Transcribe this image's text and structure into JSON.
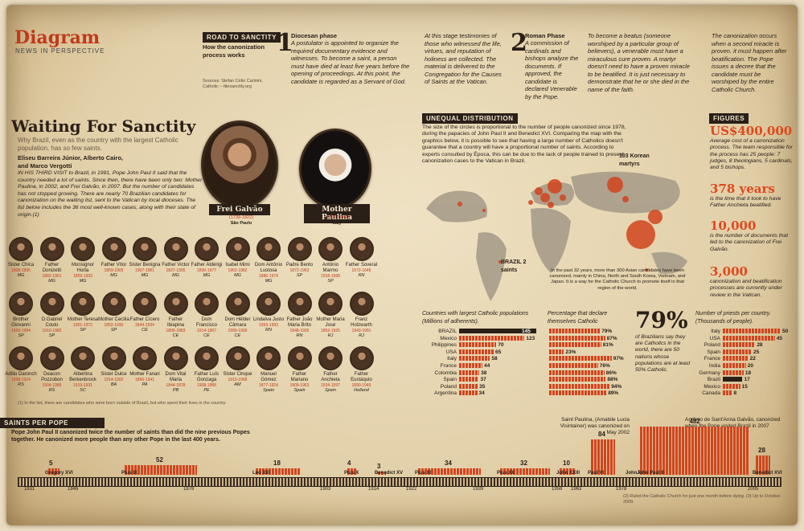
{
  "brand": {
    "title": "Diagram",
    "subtitle": "NEWS IN PERSPECTIVE"
  },
  "road": {
    "header": "ROAD TO SANCTITY",
    "subhead": "How the canonization process works",
    "sources": "Sources: Stefan Célio Carloini, Catholic – ttlesanctity.org"
  },
  "steps": [
    {
      "num": "1",
      "title": "Diocesan phase",
      "text": "A postulator is appointed to organize the required documentary evidence and witnesses. To become a saint, a person must have died at least five years before the opening of proceedings. At this point, the candidate is regarded as a Servant of God."
    },
    {
      "num": "",
      "title": "",
      "text": "At this stage testimonies of those who witnessed the life, virtues, and reputation of holiness are collected. The material is delivered to the Congregation for the Causes of Saints at the Vatican."
    },
    {
      "num": "2",
      "title": "Roman Phase",
      "text": "A commission of cardinals and bishops analyze the documents. If approved, the candidate is declared Venerable by the Pope."
    },
    {
      "num": "",
      "title": "",
      "text": "To become a beatus (someone worshiped by a particular group of believers), a venerable must have a miraculous cure proven. A martyr doesn't need to have a proven miracle to be beatified. It is just necessary to demonstrate that he or she died in the name of the faith."
    },
    {
      "num": "",
      "title": "",
      "text": "The canonization occurs when a second miracle is proven. it must happen after beatification. The Pope issues a decree that the candidate must be worshiped by the entire Catholic Church."
    }
  ],
  "waiting": {
    "title": "Waiting For Sanctity",
    "dek": "Why Brazil, even as the country with the largest Catholic population, has so few saints.",
    "authors": "Eliseu Barreira Júnior, Alberto Cairo, and Marco Vergotti",
    "body": "IN HIS THIRD VISIT to Brazil, in 1991, Pope John Paul II said that the country needed a lot of saints. Since then, there have been only two: Mother Paulina, in 2002, and Frei Galvão, in 2007. But the number of candidates has not stopped growing. There are nearly 70 Brazilian candidates for canonization on the waiting list, sent to the Vatican by local dioceses. The list below includes the 36 most well-known cases, along with their state of origin.(1)",
    "footnote": "(1) In the list, there are candidates who were born outside of Brazil, but who spent their lives in the country."
  },
  "featured": [
    {
      "name": "Frei Galvão",
      "years": "(1739-1822)",
      "place": "São Paulo"
    },
    {
      "name": "Mother Paulina",
      "years": "(1865-1942)",
      "place": "Italy"
    }
  ],
  "saints": [
    {
      "name": "Sister Chica",
      "years": "1808-1895",
      "state": "MG"
    },
    {
      "name": "Father Donizetti",
      "years": "1882-1961",
      "state": "MG"
    },
    {
      "name": "Monsignor Horta",
      "years": "1859-1933",
      "state": "MG"
    },
    {
      "name": "Father Vítor",
      "years": "1859-1905",
      "state": "MG"
    },
    {
      "name": "Sister Benigna",
      "years": "1907-1981",
      "state": "MG"
    },
    {
      "name": "Father Victor",
      "years": "1827-1905",
      "state": "MG"
    },
    {
      "name": "Father Aldérigi",
      "years": "1890-1977",
      "state": "MG"
    },
    {
      "name": "Isabel Mimi",
      "years": "1962-1982",
      "state": "MG"
    },
    {
      "name": "Dom Antônio Lustosa",
      "years": "1886-1974",
      "state": "MG"
    },
    {
      "name": "Padre Bento",
      "years": "1872-1963",
      "state": "SP"
    },
    {
      "name": "Antônio Marrno",
      "years": "1918-1998",
      "state": "SP"
    },
    {
      "name": "Father Soveral",
      "years": "1572-1645",
      "state": "RN"
    },
    {
      "name": "Brother Giovanni",
      "years": "1903-1994",
      "state": "SP"
    },
    {
      "name": "D.Gabriel Couto",
      "years": "1910-1982",
      "state": "SP"
    },
    {
      "name": "Mother Teresa",
      "years": "1901-1972",
      "state": "SP"
    },
    {
      "name": "Mother Cecília",
      "years": "1852-1930",
      "state": "SP"
    },
    {
      "name": "Father Cícero",
      "years": "1844-1934",
      "state": "CE"
    },
    {
      "name": "Father Ibiapina",
      "years": "1806-1883",
      "state": "CE"
    },
    {
      "name": "Dom Francisco",
      "years": "1914-1967",
      "state": "CE"
    },
    {
      "name": "Dom Hélder Câmara",
      "years": "1909-1999",
      "state": "CE"
    },
    {
      "name": "Lindalva Justo",
      "years": "1953-1993",
      "state": "RN"
    },
    {
      "name": "Father João Maria Brito",
      "years": "1848-1905",
      "state": "RN"
    },
    {
      "name": "Mother Maria José",
      "years": "1852-1925",
      "state": "RJ"
    },
    {
      "name": "Franz Holzwarth",
      "years": "1943-1991",
      "state": "RJ"
    },
    {
      "name": "Adílio Daronch",
      "years": "1908-1924",
      "state": "RS"
    },
    {
      "name": "Deacon Pozzobon",
      "years": "1904-1985",
      "state": "RS"
    },
    {
      "name": "Albertina Berkenbrock",
      "years": "1919-1931",
      "state": "SC"
    },
    {
      "name": "Sister Dulce",
      "years": "1914-1992",
      "state": "BA"
    },
    {
      "name": "Mother Fanari",
      "years": "1866-1941",
      "state": "PA"
    },
    {
      "name": "Dom Vital Maria",
      "years": "1844-1878",
      "state": "PB"
    },
    {
      "name": "Father Luís Gonzaga",
      "years": "1908-1968",
      "state": "PE"
    },
    {
      "name": "Sister Cinque",
      "years": "1915-1968",
      "state": "AM"
    },
    {
      "name": "Manuel Gómez",
      "years": "1877-1924",
      "state": "Spain"
    },
    {
      "name": "Father Mariano",
      "years": "1909-1963",
      "state": "Spain"
    },
    {
      "name": "Father Anchieta",
      "years": "1534-1597",
      "state": "Spain"
    },
    {
      "name": "Father Eustáquio",
      "years": "1890-1943",
      "state": "Holland"
    }
  ],
  "distribution": {
    "header": "UNEQUAL DISTRIBUTION",
    "text": "The size of the circles is proportional to the number of people canonized since 1978, during the papacies of John Paul II and Benedict XVI. Comparing the map with the graphics below, it is possible to see that having a large number of Catholics doesn't guarantee that a country will have a proportional number of saints. According to experts consulted by Época, this can be due to the lack of people trained to present canonization cases to the Vatican in Brazil.",
    "korea": "103 Korean martyrs",
    "brazil": "BRAZIL 2 saints",
    "asia_note": "In the past 32 years, more than 300 Asian candidates have been canonized, mainly in China, North and South Korea, Vietnam, and Japan. It is a way for the Catholic Church to promote itself in that region of the world."
  },
  "chart_data": [
    {
      "type": "bar",
      "title": "Countries with largest Catholic populations (Millions of adherents).",
      "categories": [
        "BRAZIL",
        "Mexico",
        "Philippines",
        "USA",
        "Italy",
        "France",
        "Colombia",
        "Spain",
        "Poland",
        "Argentina"
      ],
      "values": [
        145,
        123,
        70,
        65,
        58,
        44,
        38,
        37,
        35,
        34
      ]
    },
    {
      "type": "bar",
      "title": "Percentage that declare themselves Catholic",
      "categories": [
        "BRAZIL",
        "Mexico",
        "Philippines",
        "USA",
        "Italy",
        "France",
        "Colombia",
        "Spain",
        "Poland",
        "Argentina"
      ],
      "values": [
        79,
        87,
        81,
        23,
        97,
        76,
        86,
        88,
        94,
        89
      ],
      "unit": "%"
    },
    {
      "type": "bar",
      "title": "Number of priests per country. (Thousands of people).",
      "categories": [
        "Italy",
        "USA",
        "Poland",
        "Spain",
        "France",
        "India",
        "Germany",
        "Brazil",
        "Mexico",
        "Canada"
      ],
      "values": [
        50,
        45,
        28,
        25,
        22,
        20,
        18,
        17,
        15,
        8
      ]
    },
    {
      "type": "bar",
      "title": "SAINTS PER POPE",
      "categories": [
        "Gregory XVI",
        "Pius IX",
        "Leo XIII",
        "Pius X",
        "Benedict XV",
        "Pius XI",
        "Pius XII",
        "John XXIII",
        "Paul VI",
        "John Paul I",
        "John Paul II",
        "Benedict XVI"
      ],
      "values": [
        5,
        52,
        18,
        4,
        3,
        34,
        32,
        10,
        84,
        0,
        482,
        28
      ]
    }
  ],
  "bigstat": {
    "value": "79%",
    "text": "of Brazilians say they are Catholics in the world, there are 50 nations whose populations are at least 50% Catholic."
  },
  "figures": {
    "header": "FIGURES",
    "items": [
      {
        "value": "US$400,000",
        "text": "Average cost of a canonization process. The team responsible for the process has 25 people: 7 judges, 8 theologians, 5 cardinals, and 5 bishops."
      },
      {
        "value": "378 years",
        "text": "is the time that it took to have Father Anchieta beatified."
      },
      {
        "value": "10,000",
        "text": "is the number of documents that led to the canonization of Frei Galvão."
      },
      {
        "value": "3,000",
        "text": "canonization and beatification processes are currently under review in the Vatican."
      }
    ]
  },
  "popes": {
    "header": "SAINTS PER POPE",
    "text": "Pope John Paul II canonized twice the number of saints than did the nine previous Popes together. He canonized more people than any other Pope in the last 400 years.",
    "paulina": "Saint Paulina, (Amabile Lucia Visintainer) was canonized on May 2002",
    "galvao": "Antônio de Sant'Anna Galvão, canonized when the Pope visited Brazil in 2007",
    "years": [
      "1831",
      "1846",
      "1878",
      "1903",
      "1914",
      "1922",
      "1939",
      "1958",
      "1963",
      "1978",
      "2005"
    ],
    "footnote": "(2) Ruled the Catholic Church for just one month before dying. (3) Up to October 2009."
  }
}
